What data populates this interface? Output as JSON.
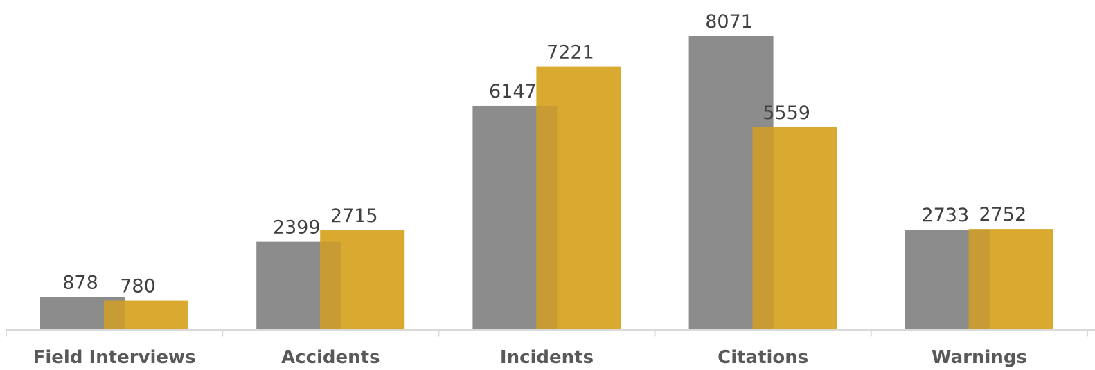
{
  "chart_data": {
    "type": "bar",
    "categories": [
      "Field Interviews",
      "Accidents",
      "Incidents",
      "Citations",
      "Warnings"
    ],
    "series": [
      {
        "values": [
          878,
          2399,
          6147,
          8071,
          2733
        ],
        "color": "#8c8c8c"
      },
      {
        "values": [
          780,
          2715,
          7221,
          5559,
          2752
        ],
        "color": "#d9a930"
      }
    ],
    "overlap_color": "#c99b35",
    "axis_color": "#d9d9d9",
    "ylim": [
      0,
      8500
    ],
    "grid": false,
    "legend": "none",
    "data_labels": true
  }
}
